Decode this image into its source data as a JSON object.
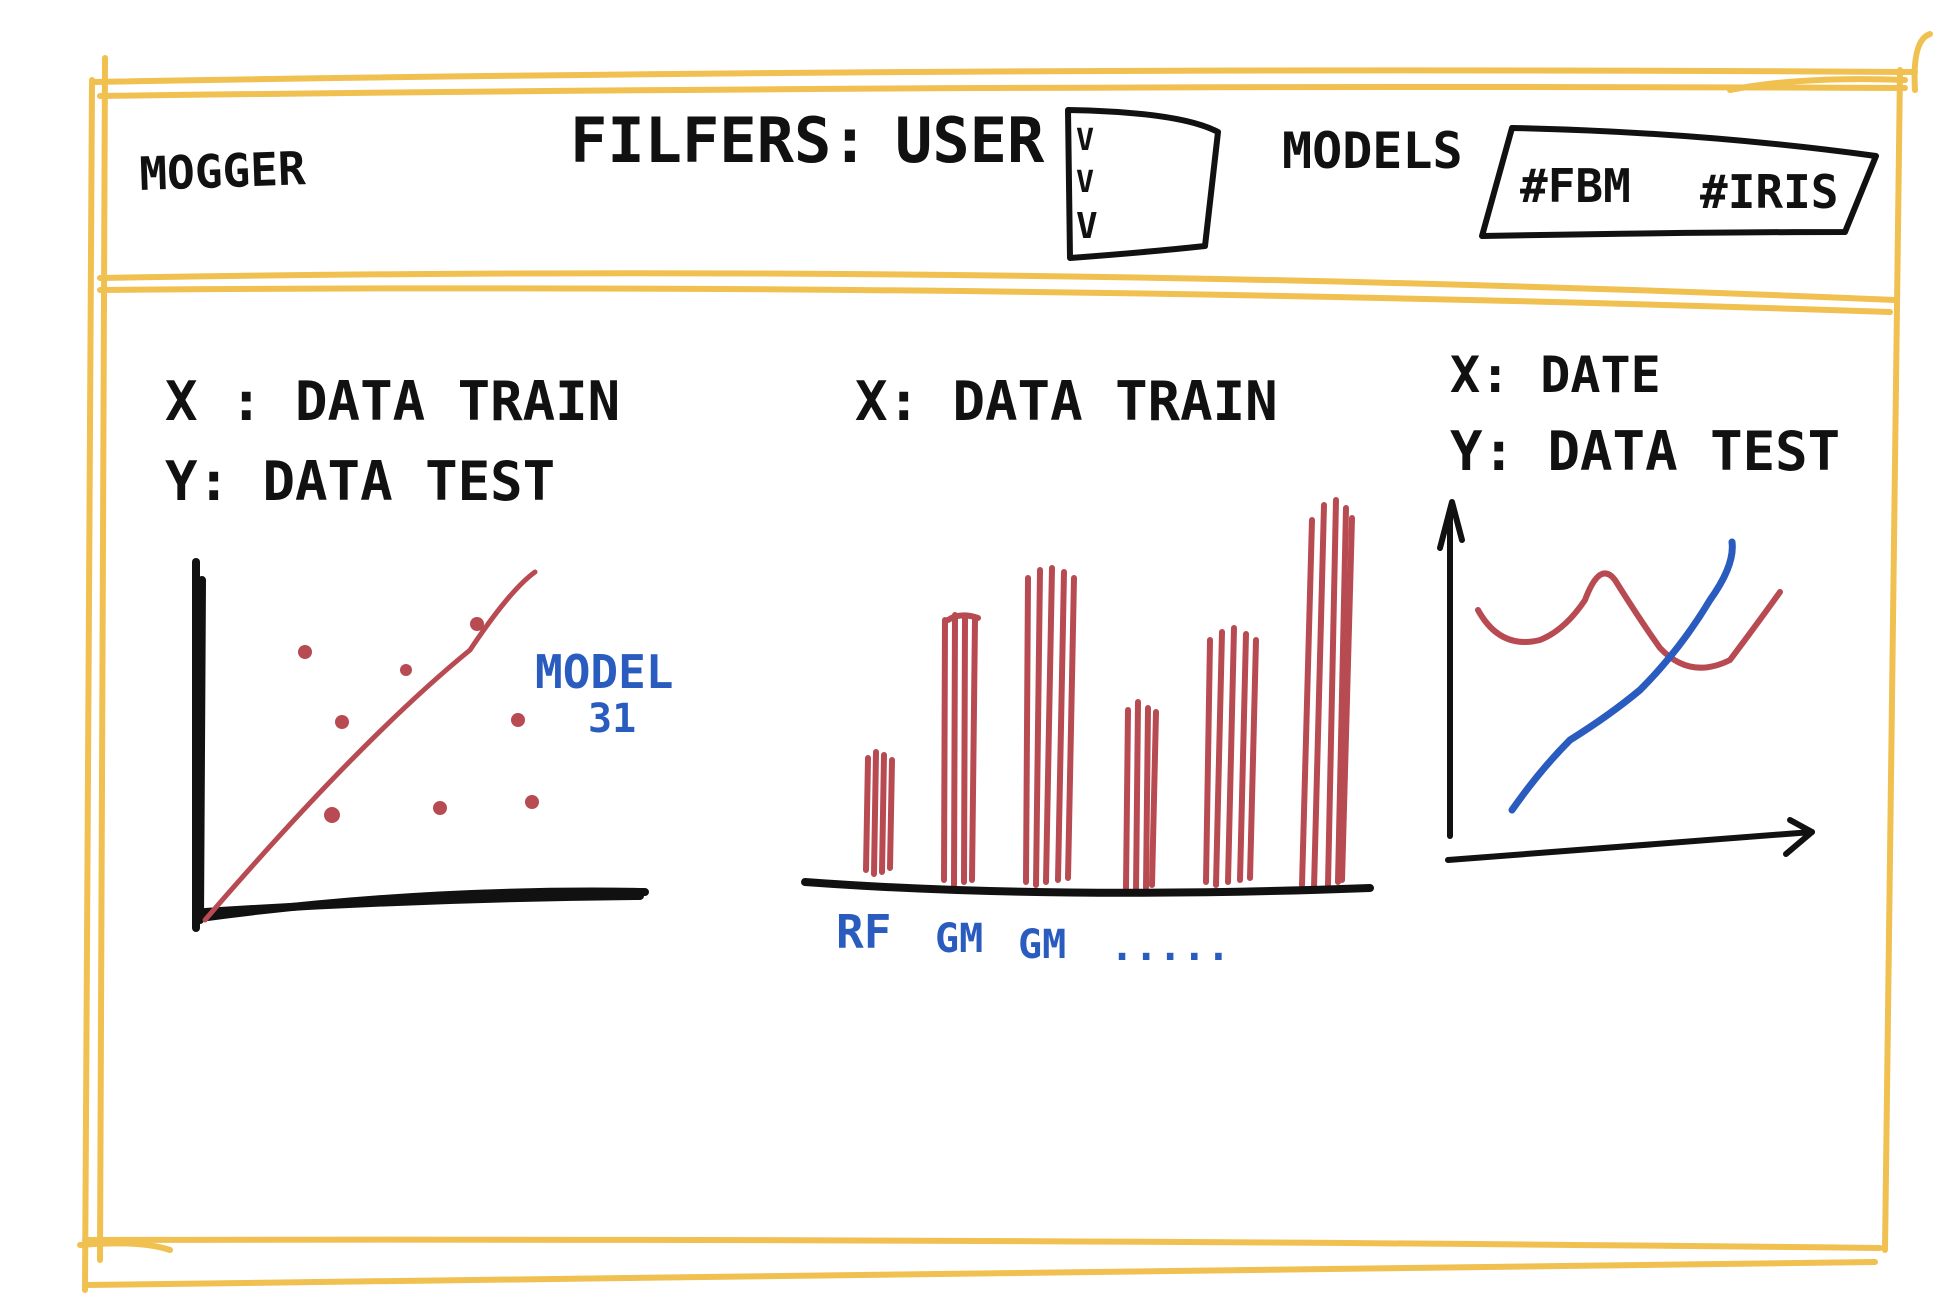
{
  "header": {
    "app_name": "MOGGER",
    "filters_label": "FILFERS:",
    "user_label": "USER",
    "user_options": [
      "V",
      "V",
      "V"
    ],
    "models_label": "MODELS",
    "model_tags": [
      "#FBM",
      "#IRIS"
    ]
  },
  "colors": {
    "frame": "#f0c050",
    "ink": "#111111",
    "red": "#b84a52",
    "blue": "#2a5bbf"
  },
  "charts": {
    "scatter": {
      "x_label": "X : DATA  TRAIN",
      "y_label": "Y:  DATA  TEST",
      "annotation_line1": "MODEL",
      "annotation_line2": "31"
    },
    "bar": {
      "x_label": "X: DATA  TRAIN",
      "categories": [
        "RF",
        "GM",
        "GM",
        "....."
      ]
    },
    "line": {
      "x_label": "X: DATE",
      "y_label": "Y: DATA  TEST"
    }
  }
}
